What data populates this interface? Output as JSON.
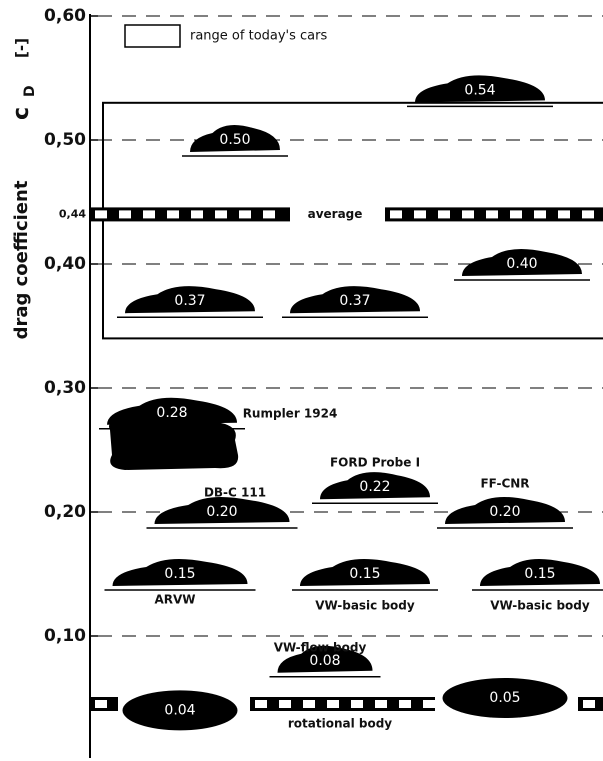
{
  "chart_data": {
    "type": "scatter",
    "y_label": "drag coefficient",
    "y_symbol": "c",
    "y_symbol_sub": "D",
    "y_unit": "[-]",
    "ylim": [
      0,
      0.6
    ],
    "yticks": [
      {
        "value": 0.6,
        "label": "0,60"
      },
      {
        "value": 0.5,
        "label": "0,50"
      },
      {
        "value": 0.44,
        "label": "0,44"
      },
      {
        "value": 0.4,
        "label": "0,40"
      },
      {
        "value": 0.3,
        "label": "0,30"
      },
      {
        "value": 0.2,
        "label": "0,20"
      },
      {
        "value": 0.1,
        "label": "0,10"
      }
    ],
    "legend_label": "range of today's cars",
    "range": [
      0.34,
      0.53
    ],
    "average_label": "average",
    "average": 0.44,
    "rotational_label": "rotational body",
    "values": [
      0.54,
      0.5,
      0.4,
      0.37,
      0.37,
      0.28,
      0.22,
      0.2,
      0.2,
      0.15,
      0.15,
      0.15,
      0.08,
      0.04,
      0.05
    ],
    "value_labels": [
      "0.54",
      "0.50",
      "0.40",
      "0.37",
      "0.37",
      "0.28",
      "0.22",
      "0.20",
      "0.20",
      "0.15",
      "0.15",
      "0.15",
      "0.08",
      "0.04",
      "0.05"
    ],
    "names": [
      null,
      null,
      null,
      null,
      null,
      "Rumpler 1924",
      "FORD Probe I",
      "DB-C 111",
      "FF-CNR",
      "ARVW",
      "VW-basic body",
      "VW-basic body",
      "VW-flow body",
      null,
      null
    ],
    "color": "#000000"
  }
}
